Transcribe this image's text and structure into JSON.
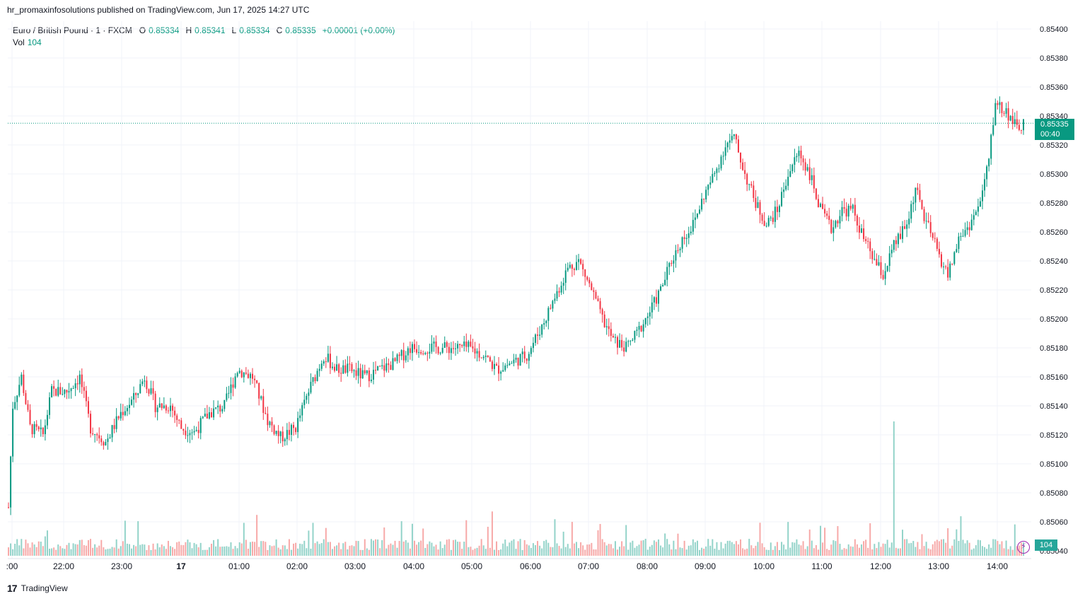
{
  "header": {
    "published_line": "hr_promaxinfosolutions published on TradingView.com, Jun 17, 2025 14:27 UTC"
  },
  "legend": {
    "symbol": "Euro / British Pound · 1 · FXCM",
    "o_label": "O",
    "o_value": "0.85334",
    "h_label": "H",
    "h_value": "0.85341",
    "l_label": "L",
    "l_value": "0.85334",
    "c_label": "C",
    "c_value": "0.85335",
    "change": "+0.00001 (+0.00%)",
    "vol_label": "Vol",
    "vol_value": "104"
  },
  "badges": {
    "last_price": "0.85335",
    "countdown": "00:40",
    "volume": "104"
  },
  "footer": {
    "brand": "TradingView",
    "logo_icon": "tradingview-logo-icon"
  },
  "colors": {
    "up": "#089981",
    "down": "#f23645",
    "vol_up": "#93d3c9",
    "vol_down": "#f7a9a8",
    "grid": "#f0f3fa",
    "last_line": "#089981"
  },
  "chart_data": {
    "type": "candlestick",
    "ylim": [
      0.8504,
      0.854
    ],
    "y_ticks": [
      "0.85400",
      "0.85380",
      "0.85360",
      "0.85340",
      "0.85320",
      "0.85300",
      "0.85280",
      "0.85260",
      "0.85240",
      "0.85220",
      "0.85200",
      "0.85180",
      "0.85160",
      "0.85140",
      "0.85120",
      "0.85100",
      "0.85080",
      "0.85060",
      "0.85040"
    ],
    "x_ticks": [
      ":00",
      "22:00",
      "23:00",
      "17",
      "01:00",
      "02:00",
      "03:00",
      "04:00",
      "05:00",
      "06:00",
      "07:00",
      "08:00",
      "09:00",
      "10:00",
      "11:00",
      "12:00",
      "13:00",
      "14:00"
    ],
    "last_price": 0.85335,
    "close_path": [
      [
        0,
        0.8507
      ],
      [
        2,
        0.8514
      ],
      [
        6,
        0.8516
      ],
      [
        10,
        0.85125
      ],
      [
        16,
        0.8512
      ],
      [
        20,
        0.8515
      ],
      [
        27,
        0.8515
      ],
      [
        33,
        0.8516
      ],
      [
        38,
        0.85125
      ],
      [
        45,
        0.85115
      ],
      [
        52,
        0.85135
      ],
      [
        58,
        0.85145
      ],
      [
        63,
        0.8516
      ],
      [
        68,
        0.8514
      ],
      [
        75,
        0.8514
      ],
      [
        80,
        0.85125
      ],
      [
        86,
        0.85122
      ],
      [
        93,
        0.85135
      ],
      [
        100,
        0.8514
      ],
      [
        106,
        0.85165
      ],
      [
        113,
        0.8516
      ],
      [
        120,
        0.8513
      ],
      [
        126,
        0.85118
      ],
      [
        133,
        0.85125
      ],
      [
        139,
        0.8515
      ],
      [
        146,
        0.85175
      ],
      [
        152,
        0.85165
      ],
      [
        158,
        0.85165
      ],
      [
        165,
        0.8516
      ],
      [
        172,
        0.85165
      ],
      [
        179,
        0.8517
      ],
      [
        186,
        0.8518
      ],
      [
        193,
        0.8518
      ],
      [
        200,
        0.8518
      ],
      [
        207,
        0.8518
      ],
      [
        213,
        0.8518
      ],
      [
        220,
        0.85175
      ],
      [
        226,
        0.85165
      ],
      [
        233,
        0.8517
      ],
      [
        240,
        0.85175
      ],
      [
        247,
        0.85195
      ],
      [
        253,
        0.85215
      ],
      [
        259,
        0.85235
      ],
      [
        264,
        0.8524
      ],
      [
        270,
        0.8522
      ],
      [
        275,
        0.852
      ],
      [
        280,
        0.85185
      ],
      [
        286,
        0.8518
      ],
      [
        291,
        0.8519
      ],
      [
        297,
        0.85205
      ],
      [
        302,
        0.8522
      ],
      [
        307,
        0.8524
      ],
      [
        312,
        0.85255
      ],
      [
        317,
        0.85265
      ],
      [
        322,
        0.85285
      ],
      [
        327,
        0.853
      ],
      [
        332,
        0.8532
      ],
      [
        336,
        0.85325
      ],
      [
        341,
        0.853
      ],
      [
        346,
        0.8528
      ],
      [
        351,
        0.85265
      ],
      [
        356,
        0.85275
      ],
      [
        361,
        0.853
      ],
      [
        366,
        0.85315
      ],
      [
        371,
        0.853
      ],
      [
        376,
        0.85275
      ],
      [
        381,
        0.85262
      ],
      [
        386,
        0.85275
      ],
      [
        391,
        0.85275
      ],
      [
        396,
        0.85255
      ],
      [
        401,
        0.8524
      ],
      [
        405,
        0.8523
      ],
      [
        410,
        0.8525
      ],
      [
        416,
        0.85265
      ],
      [
        420,
        0.8529
      ],
      [
        424,
        0.8527
      ],
      [
        428,
        0.85255
      ],
      [
        432,
        0.8524
      ],
      [
        435,
        0.8523
      ],
      [
        440,
        0.85255
      ],
      [
        445,
        0.85265
      ],
      [
        450,
        0.8528
      ],
      [
        454,
        0.8531
      ],
      [
        457,
        0.8535
      ],
      [
        460,
        0.85345
      ],
      [
        464,
        0.8534
      ],
      [
        467,
        0.8533
      ],
      [
        470,
        0.85335
      ]
    ],
    "volume": [
      15,
      104
    ]
  }
}
